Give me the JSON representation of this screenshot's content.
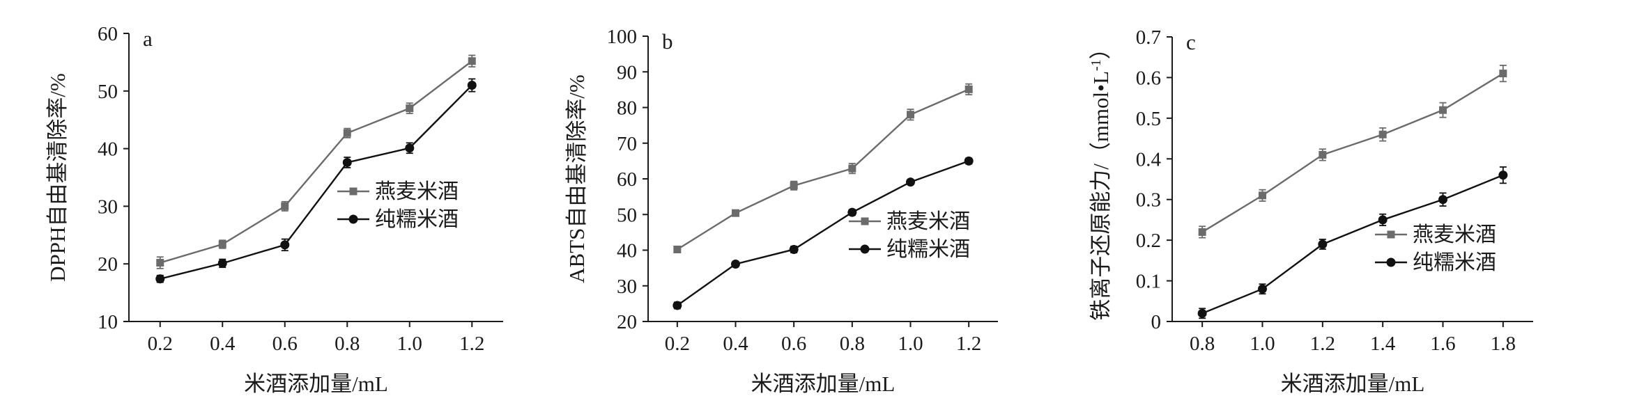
{
  "chart_data": [
    {
      "type": "line",
      "panel_label": "a",
      "ylabel": "DPPH自由基清除率/%",
      "xlabel": "米酒添加量/mL",
      "categories": [
        "0.2",
        "0.4",
        "0.6",
        "0.8",
        "1.0",
        "1.2"
      ],
      "x": [
        0.2,
        0.4,
        0.6,
        0.8,
        1.0,
        1.2
      ],
      "xlim": [
        0.1,
        1.3
      ],
      "ylim": [
        10,
        60
      ],
      "yticks": [
        "10",
        "20",
        "30",
        "40",
        "50",
        "60"
      ],
      "legend_position": "right-middle",
      "series": [
        {
          "name": "燕麦米酒",
          "color": "#6b6b6b",
          "marker": "square",
          "values": [
            20.2,
            23.4,
            30.0,
            42.7,
            47.0,
            55.2
          ],
          "errors": [
            1.0,
            0.7,
            0.8,
            0.8,
            0.9,
            1.0
          ]
        },
        {
          "name": "纯糯米酒",
          "color": "#111111",
          "marker": "circle",
          "values": [
            17.4,
            20.1,
            23.3,
            37.6,
            40.1,
            51.0
          ],
          "errors": [
            0.6,
            0.7,
            1.0,
            0.9,
            0.9,
            1.1
          ]
        }
      ]
    },
    {
      "type": "line",
      "panel_label": "b",
      "ylabel": "ABTS自由基清除率/%",
      "xlabel": "米酒添加量/mL",
      "categories": [
        "0.2",
        "0.4",
        "0.6",
        "0.8",
        "1.0",
        "1.2"
      ],
      "x": [
        0.2,
        0.4,
        0.6,
        0.8,
        1.0,
        1.2
      ],
      "xlim": [
        0.1,
        1.3
      ],
      "ylim": [
        20,
        100
      ],
      "yticks": [
        "20",
        "30",
        "40",
        "50",
        "60",
        "70",
        "80",
        "90",
        "100"
      ],
      "legend_position": "right-lower",
      "series": [
        {
          "name": "燕麦米酒",
          "color": "#6b6b6b",
          "marker": "square",
          "values": [
            40.2,
            50.4,
            58.1,
            62.9,
            78.0,
            85.1
          ],
          "errors": [
            0.5,
            0.7,
            1.2,
            1.4,
            1.5,
            1.5
          ]
        },
        {
          "name": "纯糯米酒",
          "color": "#111111",
          "marker": "circle",
          "values": [
            24.5,
            36.1,
            40.2,
            50.6,
            59.1,
            65.0
          ],
          "errors": [
            0.9,
            0.6,
            0.9,
            0.8,
            0.7,
            0.8
          ]
        }
      ]
    },
    {
      "type": "line",
      "panel_label": "c",
      "ylabel": "铁离子还原能力/（mmol•L-1）",
      "ylabel_main": "铁离子还原能力/（mmol•L",
      "ylabel_sup": "-1",
      "ylabel_close": "）",
      "xlabel": "米酒添加量/mL",
      "categories": [
        "0.8",
        "1.0",
        "1.2",
        "1.4",
        "1.6",
        "1.8"
      ],
      "x": [
        0.8,
        1.0,
        1.2,
        1.4,
        1.6,
        1.8
      ],
      "xlim": [
        0.7,
        1.9
      ],
      "ylim": [
        0,
        0.7
      ],
      "yticks": [
        "0",
        "0.1",
        "0.2",
        "0.3",
        "0.4",
        "0.5",
        "0.6",
        "0.7"
      ],
      "legend_position": "right-lower",
      "series": [
        {
          "name": "燕麦米酒",
          "color": "#6b6b6b",
          "marker": "square",
          "values": [
            0.22,
            0.31,
            0.41,
            0.46,
            0.52,
            0.61
          ],
          "errors": [
            0.014,
            0.014,
            0.014,
            0.016,
            0.018,
            0.02
          ]
        },
        {
          "name": "纯糯米酒",
          "color": "#111111",
          "marker": "circle",
          "values": [
            0.02,
            0.08,
            0.19,
            0.25,
            0.3,
            0.36
          ],
          "errors": [
            0.012,
            0.012,
            0.012,
            0.014,
            0.016,
            0.02
          ]
        }
      ]
    }
  ]
}
